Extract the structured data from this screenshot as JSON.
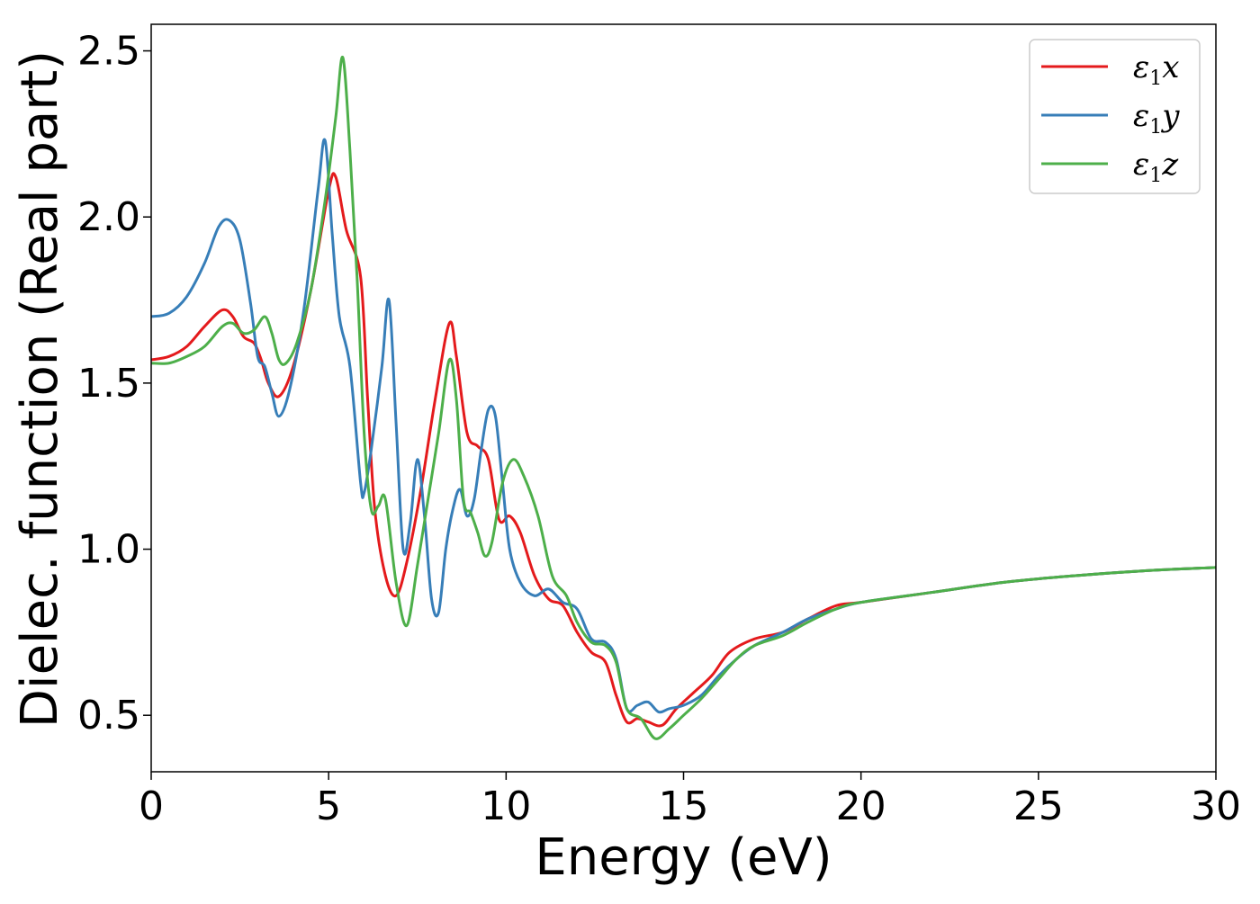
{
  "chart_data": {
    "type": "line",
    "xlabel": "Energy (eV)",
    "ylabel": "Dielec. function (Real part)",
    "xlim": [
      0,
      30
    ],
    "ylim": [
      0.33,
      2.58
    ],
    "xticks": [
      0,
      5,
      10,
      15,
      20,
      25,
      30
    ],
    "xtick_labels": [
      "0",
      "5",
      "10",
      "15",
      "20",
      "25",
      "30"
    ],
    "yticks": [
      0.5,
      1.0,
      1.5,
      2.0,
      2.5
    ],
    "ytick_labels": [
      "0.5",
      "1.0",
      "1.5",
      "2.0",
      "2.5"
    ],
    "grid": false,
    "legend_position": "top-right",
    "series": [
      {
        "name": "ε1x",
        "legend_sub": "1",
        "legend_base": "ε",
        "legend_suffix": "x",
        "color": "#e41a1c",
        "x": [
          0,
          0.5,
          1.0,
          1.5,
          2.0,
          2.3,
          2.6,
          2.9,
          3.1,
          3.3,
          3.6,
          4.0,
          4.5,
          5.0,
          5.2,
          5.5,
          5.9,
          6.1,
          6.3,
          6.6,
          6.9,
          7.2,
          7.6,
          8.0,
          8.4,
          8.6,
          8.9,
          9.2,
          9.5,
          9.8,
          10.1,
          10.4,
          10.8,
          11.2,
          11.6,
          12.0,
          12.4,
          12.8,
          13.1,
          13.4,
          13.7,
          14.0,
          14.4,
          14.8,
          15.3,
          15.8,
          16.3,
          17.0,
          17.8,
          18.5,
          19.3,
          20.0,
          22.0,
          24.0,
          26.0,
          28.0,
          30.0
        ],
        "y": [
          1.57,
          1.58,
          1.61,
          1.67,
          1.72,
          1.7,
          1.64,
          1.62,
          1.57,
          1.5,
          1.46,
          1.55,
          1.78,
          2.08,
          2.12,
          1.96,
          1.82,
          1.45,
          1.12,
          0.92,
          0.86,
          0.96,
          1.18,
          1.45,
          1.68,
          1.58,
          1.35,
          1.31,
          1.27,
          1.09,
          1.1,
          1.05,
          0.92,
          0.85,
          0.83,
          0.75,
          0.69,
          0.66,
          0.56,
          0.48,
          0.49,
          0.48,
          0.47,
          0.52,
          0.57,
          0.62,
          0.69,
          0.73,
          0.75,
          0.79,
          0.83,
          0.84,
          0.87,
          0.9,
          0.92,
          0.935,
          0.945
        ]
      },
      {
        "name": "ε1y",
        "legend_sub": "1",
        "legend_base": "ε",
        "legend_suffix": "y",
        "color": "#377eb8",
        "x": [
          0,
          0.5,
          1.0,
          1.5,
          1.9,
          2.2,
          2.5,
          2.8,
          3.0,
          3.2,
          3.4,
          3.6,
          3.9,
          4.3,
          4.7,
          4.9,
          5.1,
          5.3,
          5.6,
          5.9,
          6.0,
          6.2,
          6.5,
          6.7,
          6.9,
          7.1,
          7.3,
          7.5,
          7.7,
          7.9,
          8.1,
          8.3,
          8.5,
          8.7,
          8.9,
          9.1,
          9.3,
          9.5,
          9.7,
          9.9,
          10.1,
          10.4,
          10.8,
          11.2,
          11.6,
          12.0,
          12.4,
          12.8,
          13.1,
          13.4,
          13.7,
          14.0,
          14.3,
          14.6,
          15.0,
          15.5,
          16.0,
          16.5,
          17.0,
          17.8,
          18.5,
          19.3,
          20.0,
          22.0,
          24.0,
          26.0,
          28.0,
          30.0
        ],
        "y": [
          1.7,
          1.71,
          1.76,
          1.86,
          1.97,
          1.99,
          1.93,
          1.74,
          1.58,
          1.55,
          1.47,
          1.4,
          1.48,
          1.72,
          2.08,
          2.23,
          1.95,
          1.7,
          1.55,
          1.2,
          1.17,
          1.3,
          1.55,
          1.75,
          1.38,
          1.0,
          1.08,
          1.27,
          1.1,
          0.85,
          0.81,
          1.0,
          1.12,
          1.18,
          1.1,
          1.15,
          1.3,
          1.42,
          1.4,
          1.2,
          1.0,
          0.9,
          0.86,
          0.88,
          0.84,
          0.82,
          0.73,
          0.72,
          0.67,
          0.52,
          0.53,
          0.54,
          0.51,
          0.52,
          0.53,
          0.56,
          0.62,
          0.67,
          0.71,
          0.75,
          0.79,
          0.82,
          0.84,
          0.87,
          0.9,
          0.92,
          0.935,
          0.945
        ]
      },
      {
        "name": "ε1z",
        "legend_sub": "1",
        "legend_base": "ε",
        "legend_suffix": "z",
        "color": "#4daf4a",
        "x": [
          0,
          0.5,
          1.0,
          1.5,
          2.0,
          2.3,
          2.6,
          2.9,
          3.2,
          3.4,
          3.6,
          3.8,
          4.1,
          4.5,
          4.9,
          5.2,
          5.4,
          5.6,
          5.8,
          6.0,
          6.2,
          6.4,
          6.6,
          6.9,
          7.2,
          7.5,
          7.8,
          8.1,
          8.4,
          8.6,
          8.8,
          9.0,
          9.2,
          9.4,
          9.6,
          9.9,
          10.2,
          10.5,
          10.9,
          11.3,
          11.7,
          12.0,
          12.4,
          12.8,
          13.1,
          13.4,
          13.8,
          14.2,
          14.6,
          15.0,
          15.5,
          16.0,
          16.5,
          17.0,
          17.8,
          18.5,
          19.3,
          20.0,
          22.0,
          24.0,
          26.0,
          28.0,
          30.0
        ],
        "y": [
          1.56,
          1.56,
          1.58,
          1.61,
          1.67,
          1.68,
          1.65,
          1.66,
          1.7,
          1.65,
          1.57,
          1.56,
          1.62,
          1.78,
          2.05,
          2.3,
          2.48,
          2.2,
          1.82,
          1.35,
          1.12,
          1.13,
          1.15,
          0.9,
          0.77,
          0.95,
          1.15,
          1.35,
          1.57,
          1.45,
          1.15,
          1.11,
          1.05,
          0.98,
          1.02,
          1.2,
          1.27,
          1.22,
          1.1,
          0.92,
          0.86,
          0.78,
          0.72,
          0.71,
          0.66,
          0.52,
          0.49,
          0.43,
          0.46,
          0.5,
          0.55,
          0.61,
          0.67,
          0.71,
          0.74,
          0.78,
          0.82,
          0.84,
          0.87,
          0.9,
          0.92,
          0.935,
          0.945
        ]
      }
    ]
  }
}
